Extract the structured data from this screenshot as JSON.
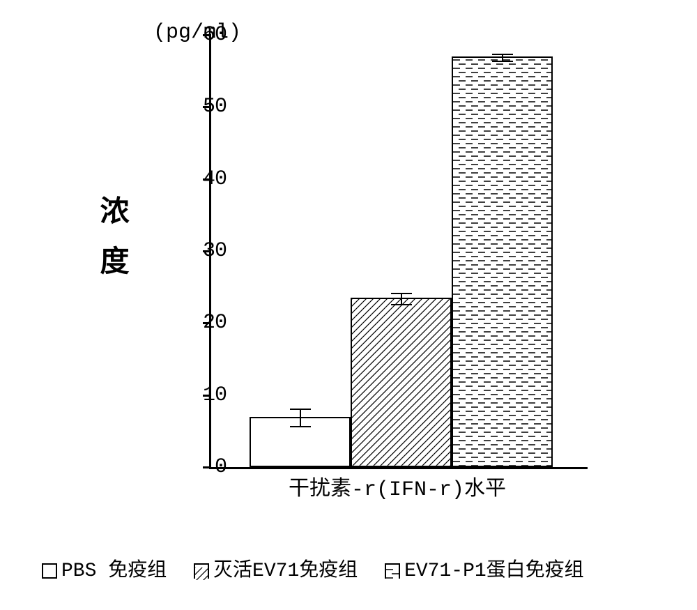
{
  "chart": {
    "type": "bar",
    "title": null,
    "x_label": "干扰素-r(IFN-r)水平",
    "y_label": "浓度",
    "y_unit": "(pg/ml)",
    "ylim": [
      0,
      60
    ],
    "ytick_step": 10,
    "yticks": [
      0,
      10,
      20,
      30,
      40,
      50,
      60
    ],
    "background_color": "#ffffff",
    "axis_color": "#000000",
    "axis_width": 3,
    "tick_fontsize": 30,
    "label_fontsize": 42,
    "bar_width_ratio": 0.28,
    "bars": [
      {
        "name": "PBS 免疫组",
        "value": 7.0,
        "error": 1.2,
        "fill": "white",
        "fill_color": "#ffffff",
        "border_color": "#000000"
      },
      {
        "name": "灭活EV71免疫组",
        "value": 23.5,
        "error": 0.8,
        "fill": "diagonal-hatch",
        "fill_color": "#ffffff",
        "hatch_color": "#000000",
        "border_color": "#000000"
      },
      {
        "name": "EV71-P1蛋白免疫组",
        "value": 57.0,
        "error": 0.5,
        "fill": "horizontal-dashes",
        "fill_color": "#ffffff",
        "hatch_color": "#000000",
        "border_color": "#000000"
      }
    ],
    "legend": {
      "items": [
        {
          "swatch": "white",
          "label": "PBS 免疫组"
        },
        {
          "swatch": "diagonal-hatch",
          "label": "灭活EV71免疫组"
        },
        {
          "swatch": "horizontal-dashes",
          "label": "EV71-P1蛋白免疫组"
        }
      ]
    }
  }
}
